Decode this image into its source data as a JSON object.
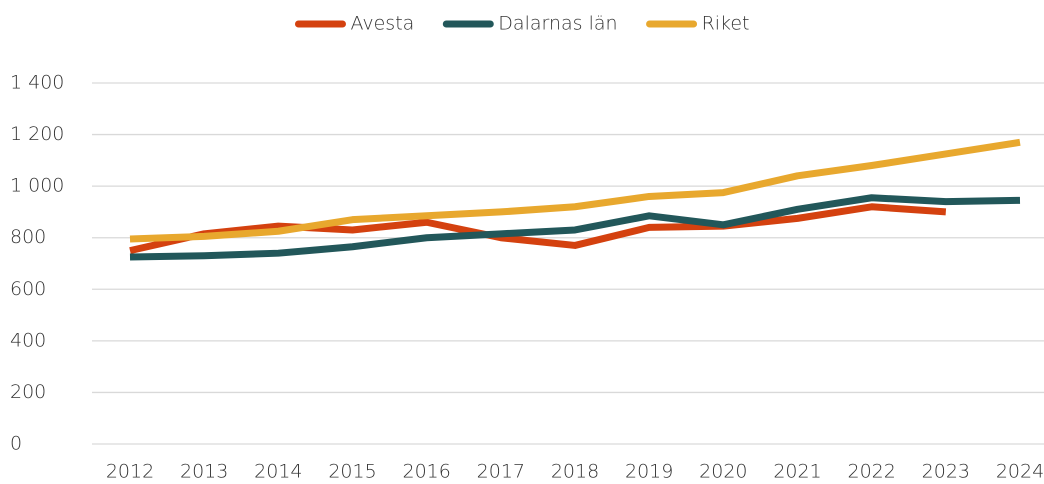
{
  "chart_data": {
    "type": "line",
    "categories": [
      "2012",
      "2013",
      "2014",
      "2015",
      "2016",
      "2017",
      "2018",
      "2019",
      "2020",
      "2021",
      "2022",
      "2023",
      "2024"
    ],
    "series": [
      {
        "name": "Avesta",
        "color": "#d4410f",
        "values": [
          750,
          815,
          845,
          830,
          860,
          800,
          770,
          840,
          845,
          875,
          920,
          900,
          null
        ]
      },
      {
        "name": "Dalarnas län",
        "color": "#22575a",
        "values": [
          725,
          730,
          740,
          765,
          800,
          815,
          830,
          885,
          850,
          910,
          955,
          940,
          945
        ]
      },
      {
        "name": "Riket",
        "color": "#e8a82e",
        "values": [
          795,
          805,
          825,
          870,
          885,
          900,
          920,
          960,
          975,
          1040,
          1080,
          1125,
          1170
        ]
      }
    ],
    "ylim": [
      0,
      1400
    ],
    "yticks": [
      0,
      200,
      400,
      600,
      800,
      {
        "value": 1000,
        "label": "1 000"
      },
      {
        "value": 1200,
        "label": "1 200"
      },
      {
        "value": 1400,
        "label": "1 400"
      }
    ],
    "grid": true,
    "legend": "top"
  }
}
